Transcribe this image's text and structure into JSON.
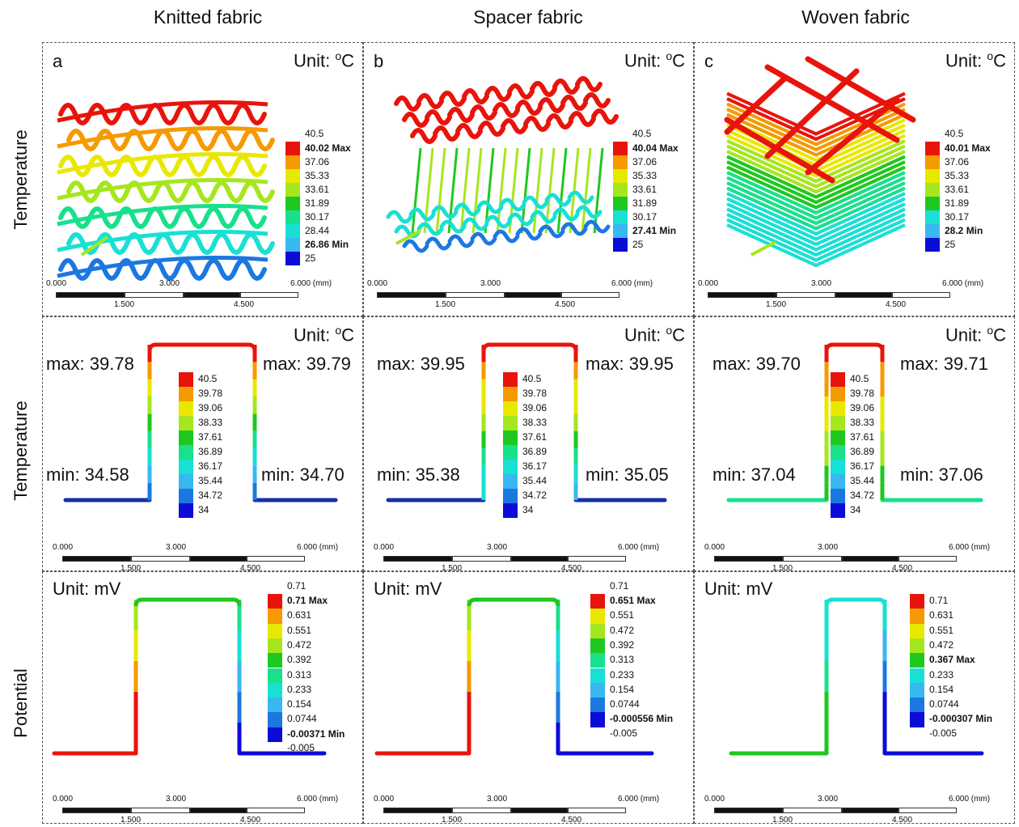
{
  "columns": [
    "Knitted fabric",
    "Spacer fabric",
    "Woven fabric"
  ],
  "rows": [
    "Temperature",
    "Temperature",
    "Potential"
  ],
  "panel_letters": [
    "a",
    "b",
    "c"
  ],
  "unit_temp_prefix": "Unit: ",
  "unit_temp_sup": "o",
  "unit_temp_suffix": "C",
  "unit_potential": "Unit: mV",
  "scale": {
    "ticks_top": [
      "0.000",
      "3.000",
      "6.000 (mm)"
    ],
    "ticks_bottom": [
      "1.500",
      "4.500"
    ]
  },
  "row1_legends": [
    {
      "top": "40.5",
      "items": [
        "40.02 Max",
        "37.06",
        "35.33",
        "33.61",
        "31.89",
        "30.17",
        "28.44",
        "26.86 Min",
        "25"
      ],
      "bold": [
        0,
        7
      ]
    },
    {
      "top": "40.5",
      "items": [
        "40.04 Max",
        "37.06",
        "35.33",
        "33.61",
        "31.89",
        "30.17",
        "27.41 Min",
        "25"
      ],
      "bold": [
        0,
        6
      ]
    },
    {
      "top": "40.5",
      "items": [
        "40.01 Max",
        "37.06",
        "35.33",
        "33.61",
        "31.89",
        "30.17",
        "28.2 Min",
        "25"
      ],
      "bold": [
        0,
        6
      ]
    }
  ],
  "row2_legend": [
    "40.5",
    "39.78",
    "39.06",
    "38.33",
    "37.61",
    "36.89",
    "36.17",
    "35.44",
    "34.72",
    "34"
  ],
  "row2_labels": [
    {
      "left_max": "max: 39.78",
      "right_max": "max: 39.79",
      "left_min": "min: 34.58",
      "right_min": "min: 34.70"
    },
    {
      "left_max": "max: 39.95",
      "right_max": "max: 39.95",
      "left_min": "min: 35.38",
      "right_min": "min: 35.05"
    },
    {
      "left_max": "max: 39.70",
      "right_max": "max: 39.71",
      "left_min": "min: 37.04",
      "right_min": "min: 37.06"
    }
  ],
  "row3_legends": [
    {
      "top": "0.71",
      "items": [
        "0.71 Max",
        "0.631",
        "0.551",
        "0.472",
        "0.392",
        "0.313",
        "0.233",
        "0.154",
        "0.0744",
        "-0.00371 Min"
      ],
      "bold": [
        0,
        9
      ],
      "bottom": "-0.005"
    },
    {
      "top": "0.71",
      "items": [
        "0.651 Max",
        "0.551",
        "0.472",
        "0.392",
        "0.313",
        "0.233",
        "0.154",
        "0.0744",
        "-0.000556 Min"
      ],
      "bold": [
        0,
        8
      ],
      "bottom": "-0.005"
    },
    {
      "top": "",
      "items": [
        "0.71",
        "0.631",
        "0.551",
        "0.472",
        "0.367 Max",
        "0.233",
        "0.154",
        "0.0744",
        "-0.000307 Min"
      ],
      "bold": [
        4,
        8
      ],
      "bottom": "-0.005"
    }
  ],
  "colors": {
    "red": "#e8140c",
    "orange": "#f59a00",
    "yellow": "#e8e800",
    "yellowgreen": "#a6e61e",
    "green": "#1ec81e",
    "aquagreen": "#18e08c",
    "cyan": "#18e0d4",
    "lightblue": "#38b8f0",
    "blue": "#1c78e0",
    "navy": "#0c0cd8",
    "darkblue": "#1830a8"
  }
}
